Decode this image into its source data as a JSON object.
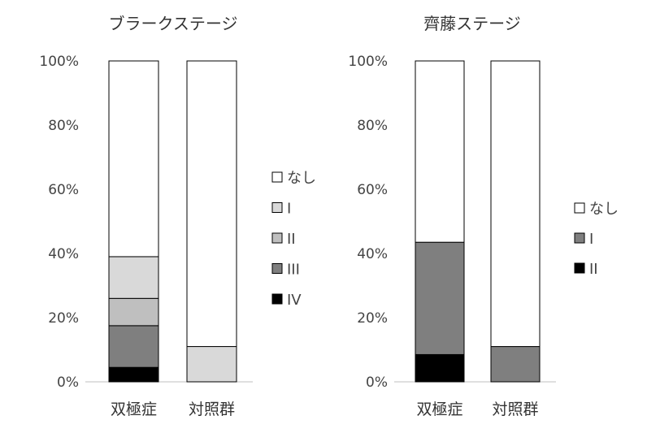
{
  "chart_data": [
    {
      "type": "bar",
      "stacked": true,
      "title": "ブラークステージ",
      "categories": [
        "双極症",
        "対照群"
      ],
      "yticks": [
        "0%",
        "20%",
        "40%",
        "60%",
        "80%",
        "100%"
      ],
      "ylim": [
        0,
        100
      ],
      "grid": false,
      "legend_position": "right",
      "series": [
        {
          "name": "IV",
          "color": "#000000",
          "values": [
            4.5,
            0
          ]
        },
        {
          "name": "III",
          "color": "#7f7f7f",
          "values": [
            13,
            0
          ]
        },
        {
          "name": "II",
          "color": "#bfbfbf",
          "values": [
            8.5,
            0
          ]
        },
        {
          "name": "I",
          "color": "#d9d9d9",
          "values": [
            13,
            11
          ]
        },
        {
          "name": "なし",
          "color": "#ffffff",
          "values": [
            61,
            89
          ]
        }
      ],
      "legend": [
        "なし",
        "I",
        "II",
        "III",
        "IV"
      ]
    },
    {
      "type": "bar",
      "stacked": true,
      "title": "齊藤ステージ",
      "categories": [
        "双極症",
        "対照群"
      ],
      "yticks": [
        "0%",
        "20%",
        "40%",
        "60%",
        "80%",
        "100%"
      ],
      "ylim": [
        0,
        100
      ],
      "grid": false,
      "legend_position": "right",
      "series": [
        {
          "name": "II",
          "color": "#000000",
          "values": [
            8.5,
            0
          ]
        },
        {
          "name": "I",
          "color": "#7f7f7f",
          "values": [
            35,
            11
          ]
        },
        {
          "name": "なし",
          "color": "#ffffff",
          "values": [
            56.5,
            89
          ]
        }
      ],
      "legend": [
        "なし",
        "I",
        "II"
      ]
    }
  ]
}
